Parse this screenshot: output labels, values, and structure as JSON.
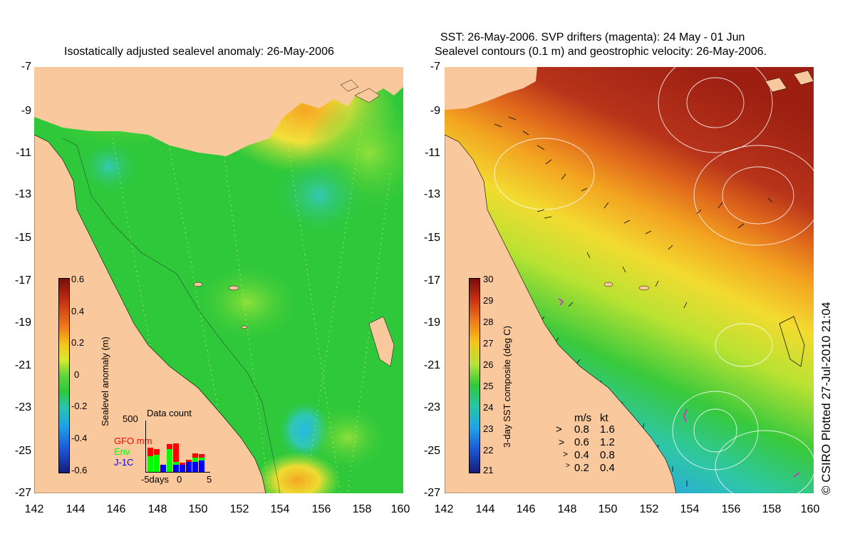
{
  "left_panel": {
    "title": "Isostatically adjusted sealevel anomaly: 26-May-2006",
    "x_ticks": [
      "142",
      "144",
      "146",
      "148",
      "150",
      "152",
      "154",
      "156",
      "158",
      "160"
    ],
    "y_ticks": [
      "-7",
      "-9",
      "-11",
      "-13",
      "-15",
      "-17",
      "-19",
      "-21",
      "-23",
      "-25",
      "-27"
    ],
    "colorbar": {
      "label": "Sealevel anomaly (m)",
      "ticks": [
        "0.6",
        "0.4",
        "0.2",
        "0",
        "-0.2",
        "-0.4",
        "-0.6"
      ]
    },
    "data_count": {
      "title": "Data count",
      "max_label": "500",
      "legend": [
        {
          "label": "GFO mm",
          "color": "#ff0000"
        },
        {
          "label": "Env",
          "color": "#00ff00"
        },
        {
          "label": "J-1C",
          "color": "#0000ff"
        }
      ],
      "x_ticks": [
        "-5days",
        "0",
        "5"
      ]
    }
  },
  "right_panel": {
    "title_line1": "SST: 26-May-2006. SVP drifters (magenta): 24 May - 01 Jun",
    "title_line2": "Sealevel contours (0.1 m) and geostrophic velocity: 26-May-2006.",
    "x_ticks": [
      "142",
      "144",
      "146",
      "148",
      "150",
      "152",
      "154",
      "156",
      "158",
      "160"
    ],
    "y_ticks": [
      "-7",
      "-9",
      "-11",
      "-13",
      "-15",
      "-17",
      "-19",
      "-21",
      "-23",
      "-25",
      "-27"
    ],
    "colorbar": {
      "label": "3-day SST composite (deg C)",
      "ticks": [
        "30",
        "29",
        "28",
        "27",
        "26",
        "25",
        "24",
        "23",
        "22",
        "21"
      ]
    },
    "velocity_legend": {
      "header_ms": "m/s",
      "header_kt": "kt",
      "rows": [
        {
          "ms": "0.8",
          "kt": "1.6"
        },
        {
          "ms": "0.6",
          "kt": "1.2"
        },
        {
          "ms": "0.4",
          "kt": "0.8"
        },
        {
          "ms": "0.2",
          "kt": "0.4"
        }
      ]
    }
  },
  "credit": "© CSIRO Plotted 27-Jul-2010 21:04",
  "colors": {
    "land": "#f9c99d",
    "sla_mid": "#2ec83a",
    "sst_hot": "#a52a1a"
  }
}
